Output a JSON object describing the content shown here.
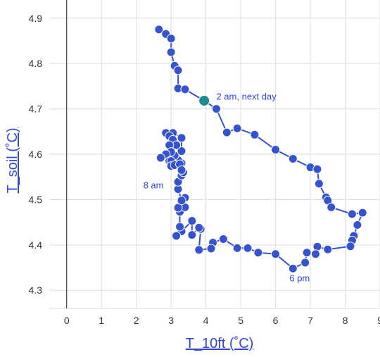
{
  "chart_data": {
    "type": "scatter",
    "xlabel": "T_10ft (˚C)",
    "ylabel": "T_soil (˚C)",
    "xlim": [
      -0.5,
      9.0
    ],
    "ylim": [
      4.26,
      4.94
    ],
    "xticks": [
      "0",
      "1",
      "2",
      "3",
      "4",
      "5",
      "6",
      "7",
      "8",
      "9"
    ],
    "yticks": [
      "4.3",
      "4.4",
      "4.5",
      "4.6",
      "4.7",
      "4.8",
      "4.9"
    ],
    "grid": true,
    "colors": {
      "series": "#3552cf",
      "highlight": "#1f8a95",
      "annotation": "#3347d6",
      "grid": "#dddddd"
    },
    "series": [
      {
        "points": [
          [
            2.65,
            4.875
          ],
          [
            2.85,
            4.865
          ],
          [
            3.0,
            4.855
          ],
          [
            3.0,
            4.825
          ],
          [
            3.1,
            4.795
          ],
          [
            3.2,
            4.785
          ],
          [
            3.2,
            4.745
          ],
          [
            3.4,
            4.743
          ],
          [
            3.95,
            4.718
          ],
          [
            4.3,
            4.7
          ],
          [
            4.6,
            4.648
          ],
          [
            4.9,
            4.657
          ],
          [
            5.4,
            4.643
          ],
          [
            6.0,
            4.61
          ],
          [
            6.5,
            4.59
          ],
          [
            7.0,
            4.571
          ],
          [
            7.2,
            4.567
          ],
          [
            7.25,
            4.535
          ],
          [
            7.45,
            4.505
          ],
          [
            7.5,
            4.498
          ],
          [
            7.6,
            4.483
          ],
          [
            8.2,
            4.468
          ],
          [
            8.5,
            4.471
          ],
          [
            8.35,
            4.444
          ],
          [
            8.25,
            4.42
          ],
          [
            8.2,
            4.41
          ],
          [
            8.15,
            4.397
          ],
          [
            7.5,
            4.39
          ],
          [
            7.2,
            4.396
          ],
          [
            7.15,
            4.38
          ],
          [
            6.9,
            4.383
          ],
          [
            6.85,
            4.361
          ],
          [
            6.5,
            4.348
          ],
          [
            6.0,
            4.38
          ],
          [
            5.5,
            4.383
          ],
          [
            5.2,
            4.393
          ],
          [
            4.9,
            4.393
          ],
          [
            4.5,
            4.413
          ],
          [
            4.2,
            4.405
          ],
          [
            4.15,
            4.392
          ],
          [
            3.8,
            4.389
          ],
          [
            3.85,
            4.435
          ],
          [
            3.8,
            4.438
          ],
          [
            3.6,
            4.422
          ],
          [
            3.6,
            4.453
          ],
          [
            3.3,
            4.43
          ],
          [
            3.15,
            4.42
          ],
          [
            3.25,
            4.44
          ],
          [
            3.25,
            4.473
          ],
          [
            3.4,
            4.483
          ],
          [
            3.4,
            4.504
          ],
          [
            3.2,
            4.482
          ],
          [
            3.3,
            4.498
          ],
          [
            3.2,
            4.523
          ],
          [
            3.2,
            4.539
          ],
          [
            3.3,
            4.553
          ],
          [
            3.35,
            4.56
          ],
          [
            3.3,
            4.58
          ],
          [
            3.2,
            4.587
          ],
          [
            3.1,
            4.597
          ],
          [
            3.3,
            4.607
          ],
          [
            3.3,
            4.636
          ],
          [
            3.05,
            4.647
          ],
          [
            2.85,
            4.647
          ],
          [
            2.95,
            4.64
          ],
          [
            3.05,
            4.632
          ],
          [
            3.15,
            4.62
          ],
          [
            2.95,
            4.62
          ],
          [
            3.0,
            4.605
          ],
          [
            2.85,
            4.6
          ],
          [
            2.7,
            4.592
          ],
          [
            2.95,
            4.585
          ],
          [
            3.05,
            4.58
          ],
          [
            3.0,
            4.585
          ],
          [
            3.0,
            4.574
          ],
          [
            3.1,
            4.576
          ],
          [
            3.25,
            4.578
          ],
          [
            3.3,
            4.565
          ]
        ]
      }
    ],
    "highlight_point": [
      3.95,
      4.718
    ],
    "annotations": [
      {
        "text": "2 am, next day",
        "x": 4.3,
        "y": 4.72
      },
      {
        "text": "8 am",
        "x": 2.2,
        "y": 4.525
      },
      {
        "text": "6 pm",
        "x": 6.4,
        "y": 4.32
      }
    ]
  }
}
